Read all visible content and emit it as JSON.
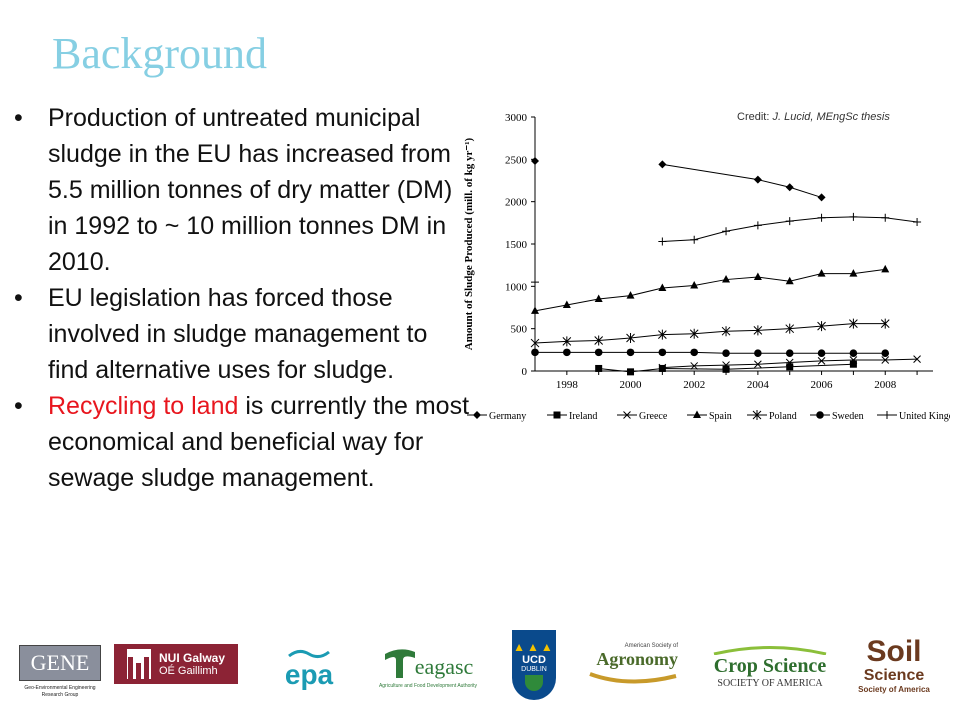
{
  "slide": {
    "title": "Background"
  },
  "bullets": [
    {
      "text": "Production of untreated municipal sludge in the EU has increased from 5.5 million tonnes of dry matter (DM) in 1992 to ~ 10 million tonnes DM in 2010."
    },
    {
      "text": "EU legislation has forced those involved in sludge management to find alternative uses for sludge."
    },
    {
      "highlight": "Recycling to land",
      "text": " is currently the most economical and beneficial way for sewage sludge management."
    }
  ],
  "credit": {
    "prefix": "Credit: ",
    "text": "J. Lucid, MEngSc thesis"
  },
  "colors": {
    "title": "#86cfe3",
    "highlight": "#e8161e",
    "text": "#111111"
  },
  "chart_data": {
    "type": "line",
    "xlabel": "",
    "ylabel": "Amount of Sludge Produced (mill. of kg yr⁻¹)",
    "xlim": [
      1998,
      2009.5
    ],
    "ylim": [
      0,
      3000
    ],
    "xticks": [
      1998,
      2000,
      2002,
      2004,
      2006,
      2008
    ],
    "yticks": [
      0,
      500,
      1000,
      1500,
      2000,
      2500,
      3000
    ],
    "grid": false,
    "legend": "bottom",
    "series": [
      {
        "name": "Germany",
        "marker": "diamond",
        "points": [
          [
            1997,
            2480
          ],
          [
            2001,
            2440
          ],
          [
            2004,
            2260
          ],
          [
            2005,
            2170
          ],
          [
            2006,
            2050
          ]
        ]
      },
      {
        "name": "Ireland",
        "marker": "square",
        "points": [
          [
            1999,
            30
          ],
          [
            2000,
            -10
          ],
          [
            2001,
            30
          ],
          [
            2003,
            20
          ],
          [
            2005,
            50
          ],
          [
            2007,
            80
          ]
        ]
      },
      {
        "name": "Greece",
        "marker": "x",
        "points": [
          [
            2001,
            40
          ],
          [
            2002,
            60
          ],
          [
            2003,
            70
          ],
          [
            2004,
            80
          ],
          [
            2005,
            100
          ],
          [
            2006,
            120
          ],
          [
            2007,
            130
          ],
          [
            2008,
            130
          ],
          [
            2009,
            140
          ]
        ]
      },
      {
        "name": "Spain",
        "marker": "triangle",
        "points": [
          [
            1997,
            710
          ],
          [
            1998,
            780
          ],
          [
            1999,
            850
          ],
          [
            2000,
            890
          ],
          [
            2001,
            980
          ],
          [
            2002,
            1010
          ],
          [
            2003,
            1080
          ],
          [
            2004,
            1110
          ],
          [
            2005,
            1060
          ],
          [
            2006,
            1150
          ],
          [
            2007,
            1150
          ],
          [
            2008,
            1200
          ]
        ]
      },
      {
        "name": "Poland",
        "marker": "asterisk",
        "points": [
          [
            1997,
            330
          ],
          [
            1998,
            350
          ],
          [
            1999,
            360
          ],
          [
            2000,
            390
          ],
          [
            2001,
            430
          ],
          [
            2002,
            440
          ],
          [
            2003,
            470
          ],
          [
            2004,
            480
          ],
          [
            2005,
            500
          ],
          [
            2006,
            530
          ],
          [
            2007,
            560
          ],
          [
            2008,
            560
          ]
        ]
      },
      {
        "name": "Sweden",
        "marker": "circle",
        "points": [
          [
            1997,
            220
          ],
          [
            1998,
            220
          ],
          [
            1999,
            220
          ],
          [
            2000,
            220
          ],
          [
            2001,
            220
          ],
          [
            2002,
            220
          ],
          [
            2003,
            210
          ],
          [
            2004,
            210
          ],
          [
            2005,
            210
          ],
          [
            2006,
            210
          ],
          [
            2007,
            210
          ],
          [
            2008,
            210
          ]
        ]
      },
      {
        "name": "United Kingdom",
        "marker": "plus",
        "points": [
          [
            1997,
            1050
          ],
          [
            2001,
            1530
          ],
          [
            2002,
            1550
          ],
          [
            2003,
            1650
          ],
          [
            2004,
            1720
          ],
          [
            2005,
            1770
          ],
          [
            2006,
            1810
          ],
          [
            2007,
            1820
          ],
          [
            2008,
            1810
          ],
          [
            2009,
            1760
          ]
        ]
      }
    ]
  },
  "logos": [
    {
      "name": "gene",
      "label": "GENE",
      "caption": "Geo-Environmental Engineering Research Group"
    },
    {
      "name": "nui-galway",
      "label1": "NUI Galway",
      "label2": "OÉ Gaillimh"
    },
    {
      "name": "epa",
      "label": "epa"
    },
    {
      "name": "teagasc",
      "label": "eagasc",
      "caption": "Agriculture and Food Development Authority"
    },
    {
      "name": "ucd",
      "label1": "UCD",
      "label2": "DUBLIN"
    },
    {
      "name": "agronomy",
      "label1": "American Society of",
      "label2": "Agronomy"
    },
    {
      "name": "crop-science",
      "label1": "Crop Science",
      "label2": "SOCIETY OF AMERICA"
    },
    {
      "name": "soil-science",
      "label1": "Soil",
      "label2": "Science",
      "label3": "Society of America"
    }
  ]
}
